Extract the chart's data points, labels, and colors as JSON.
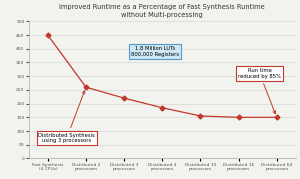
{
  "title_line1": "Improved Runtime as a Percentage of Fast Synthesis Runtime",
  "title_line2": "without Multi-processing",
  "x_labels": [
    "Fast Synthesis\n(4 CPUs)",
    "Distributed 2\nprocessors",
    "Distributed 3\nprocessors",
    "Distributed 4\nprocessors",
    "Distributed 10\nprocessors",
    "Distributed 16\nprocessors",
    "Distributed 64\nprocessors"
  ],
  "y_values": [
    450,
    260,
    220,
    185,
    155,
    150,
    150
  ],
  "ylim": [
    0,
    500
  ],
  "yticks": [
    0,
    50,
    100,
    150,
    200,
    250,
    300,
    350,
    400,
    450,
    500
  ],
  "line_color": "#c0392b",
  "marker": "D",
  "marker_size": 2.5,
  "annotation_box1_text": "1.8 Million LUTs\n800,000 Registers",
  "annotation_box1_facecolor": "#cce8f4",
  "annotation_box1_edgecolor": "#5599cc",
  "annotation_box2_text": "Distributed Synthesis\nusing 3 processors",
  "annotation_box2_facecolor": "#ffffff",
  "annotation_box2_edgecolor": "#c0392b",
  "annotation_box3_text": "Run time\nreduced by 85%",
  "annotation_box3_facecolor": "#ffffff",
  "annotation_box3_edgecolor": "#c0392b",
  "bg_color": "#f2f2ee",
  "plot_bg_color": "#f2f2ee",
  "title_fontsize": 4.8,
  "tick_fontsize": 3.2,
  "annot_fontsize": 3.8,
  "grid_color": "#d0d0d0",
  "spine_color": "#aaaaaa"
}
